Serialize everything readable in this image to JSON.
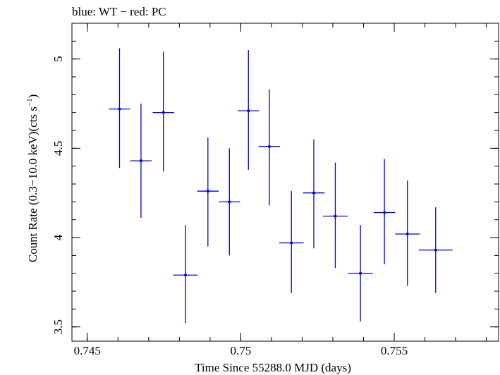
{
  "chart_data": {
    "type": "scatter",
    "title": "blue: WT − red: PC",
    "xlabel": "Time Since 55288.0 MJD (days)",
    "ylabel_main": "Count Rate (0.3−10.0 keV)(cts s",
    "ylabel_sup": "−1",
    "ylabel_close": ")",
    "xlim": [
      0.7445,
      0.7584
    ],
    "ylim": [
      3.42,
      5.2
    ],
    "xticks": [
      {
        "value": 0.745,
        "label": "0.745"
      },
      {
        "value": 0.75,
        "label": "0.75"
      },
      {
        "value": 0.755,
        "label": "0.755"
      }
    ],
    "yticks": [
      {
        "value": 3.5,
        "label": "3.5"
      },
      {
        "value": 4,
        "label": "4"
      },
      {
        "value": 4.5,
        "label": "4.5"
      },
      {
        "value": 5,
        "label": "5"
      }
    ],
    "x_minor_step": 0.001,
    "y_minor_step": 0.1,
    "grid": false,
    "series": [
      {
        "color": "#0000e0",
        "points": [
          {
            "x": 0.74605,
            "xerr": 0.00035,
            "y": 4.72,
            "ylo": 4.39,
            "yhi": 5.06
          },
          {
            "x": 0.74675,
            "xerr": 0.00035,
            "y": 4.43,
            "ylo": 4.11,
            "yhi": 4.75
          },
          {
            "x": 0.74748,
            "xerr": 0.00035,
            "y": 4.7,
            "ylo": 4.37,
            "yhi": 5.04
          },
          {
            "x": 0.7482,
            "xerr": 0.0004,
            "y": 3.79,
            "ylo": 3.52,
            "yhi": 4.07
          },
          {
            "x": 0.74893,
            "xerr": 0.00035,
            "y": 4.26,
            "ylo": 3.95,
            "yhi": 4.56
          },
          {
            "x": 0.74963,
            "xerr": 0.00035,
            "y": 4.2,
            "ylo": 3.9,
            "yhi": 4.5
          },
          {
            "x": 0.75025,
            "xerr": 0.00035,
            "y": 4.71,
            "ylo": 4.38,
            "yhi": 5.05
          },
          {
            "x": 0.75093,
            "xerr": 0.00035,
            "y": 4.51,
            "ylo": 4.18,
            "yhi": 4.83
          },
          {
            "x": 0.75165,
            "xerr": 0.0004,
            "y": 3.97,
            "ylo": 3.69,
            "yhi": 4.26
          },
          {
            "x": 0.75238,
            "xerr": 0.00035,
            "y": 4.25,
            "ylo": 3.94,
            "yhi": 4.55
          },
          {
            "x": 0.75308,
            "xerr": 0.0004,
            "y": 4.12,
            "ylo": 3.83,
            "yhi": 4.42
          },
          {
            "x": 0.7539,
            "xerr": 0.0004,
            "y": 3.8,
            "ylo": 3.53,
            "yhi": 4.07
          },
          {
            "x": 0.75468,
            "xerr": 0.00035,
            "y": 4.14,
            "ylo": 3.85,
            "yhi": 4.44
          },
          {
            "x": 0.75543,
            "xerr": 0.0004,
            "y": 4.02,
            "ylo": 3.73,
            "yhi": 4.32
          },
          {
            "x": 0.75635,
            "xerr": 0.00055,
            "y": 3.93,
            "ylo": 3.69,
            "yhi": 4.17
          }
        ]
      }
    ]
  }
}
